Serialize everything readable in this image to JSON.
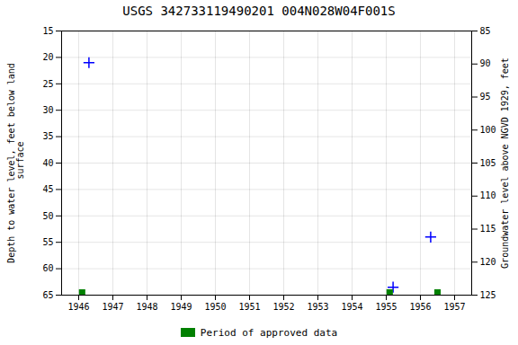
{
  "chart_data": {
    "type": "scatter",
    "title": "USGS 342733119490201 004N028W04F001S",
    "ylabel": "Depth to water level, feet below land\n surface",
    "y2label": "Groundwater level above NGVD 1929, feet",
    "xlim": [
      1945.5,
      1957.5
    ],
    "xticks": [
      1946,
      1947,
      1948,
      1949,
      1950,
      1951,
      1952,
      1953,
      1954,
      1955,
      1956,
      1957
    ],
    "ylim": [
      65,
      15
    ],
    "yticks": [
      15,
      20,
      25,
      30,
      35,
      40,
      45,
      50,
      55,
      60,
      65
    ],
    "y2lim": [
      125,
      85
    ],
    "y2ticks": [
      125,
      120,
      115,
      110,
      105,
      100,
      95,
      90,
      85
    ],
    "grid": true,
    "legend": "bottom",
    "series": [
      {
        "color": "blue",
        "marker": "plus",
        "x": [
          1946.3,
          1955.2,
          1956.3
        ],
        "values": [
          21.0,
          63.5,
          54.0
        ]
      },
      {
        "name": "Period of approved data",
        "color": "#008000",
        "marker": "square",
        "x": [
          1946.1,
          1955.1,
          1956.5
        ],
        "values": [
          64.5,
          64.5,
          64.5
        ]
      }
    ]
  }
}
